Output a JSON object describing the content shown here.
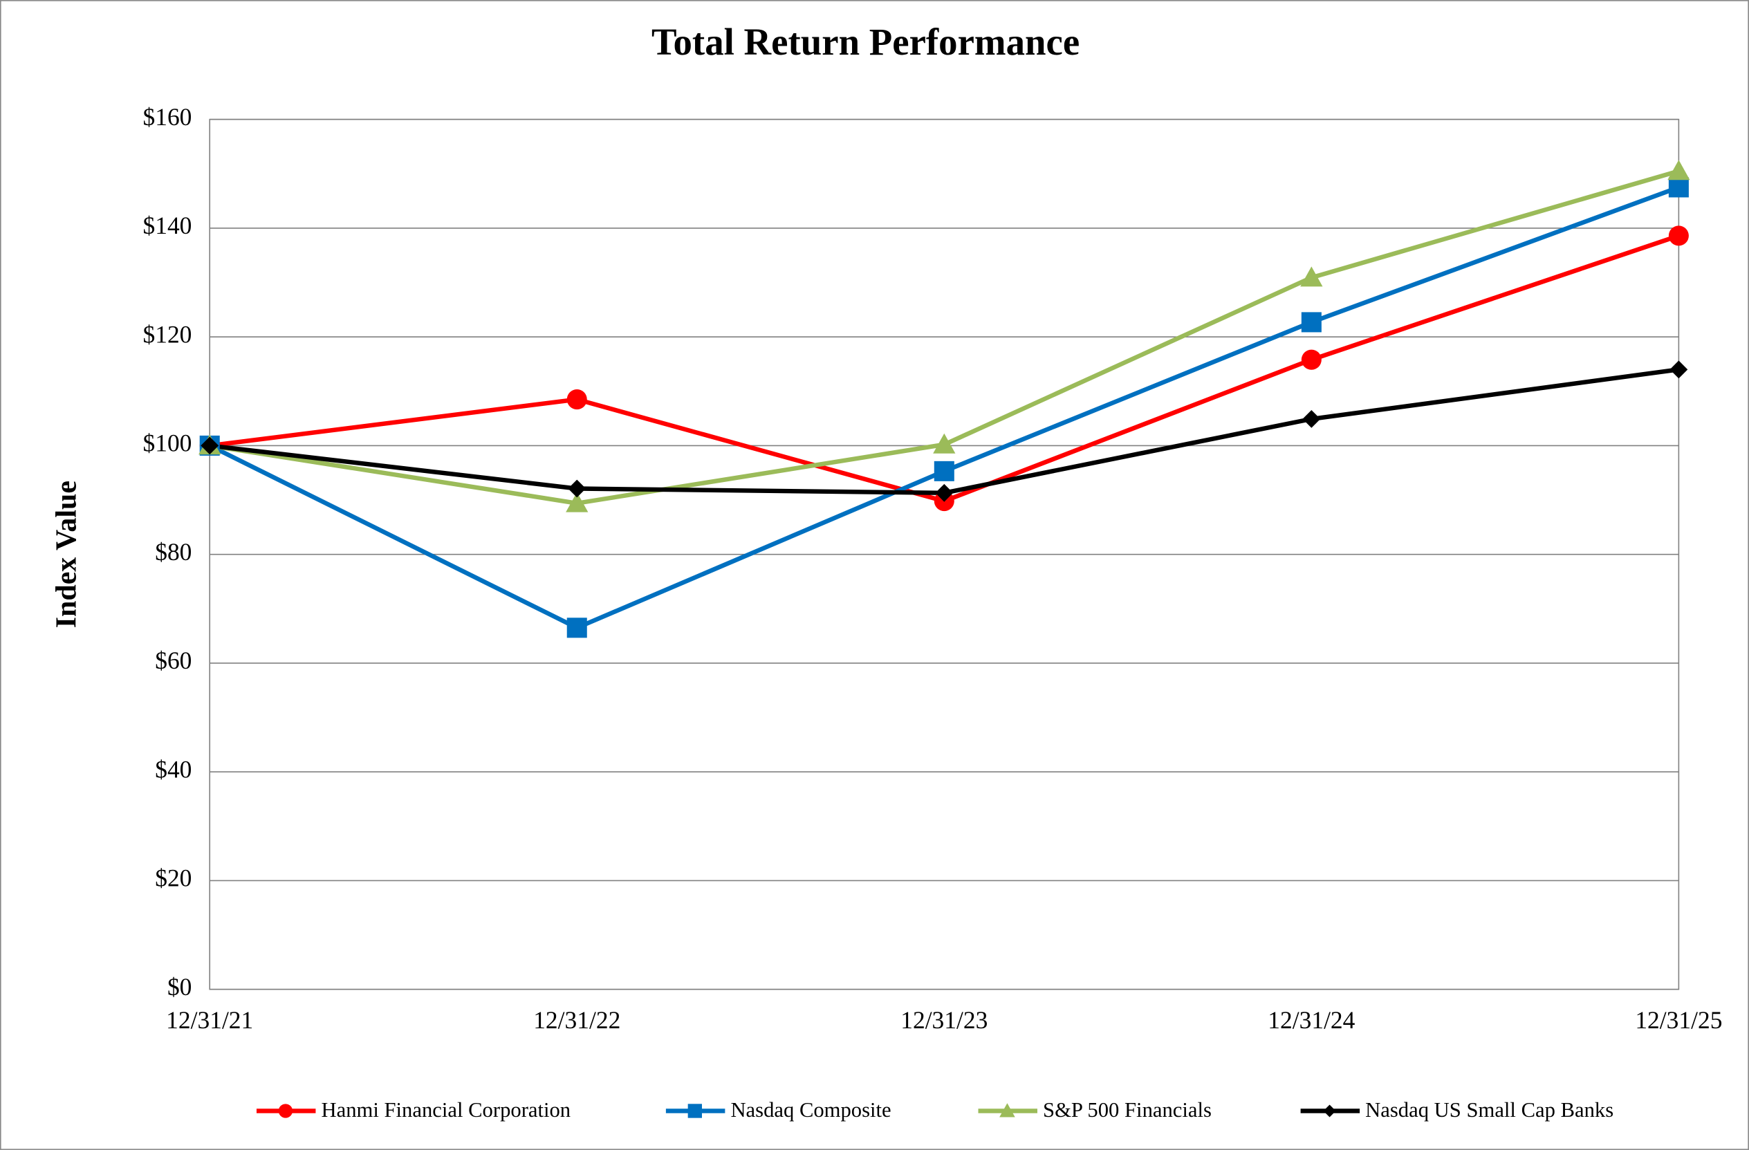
{
  "chart_data": {
    "type": "line",
    "title": "Total Return Performance",
    "y_label": "Index Value",
    "categories": [
      "12/31/21",
      "12/31/22",
      "12/31/23",
      "12/31/24",
      "12/31/25"
    ],
    "series": [
      {
        "name": "Hanmi Financial Corporation",
        "color": "#ff0000",
        "marker": "circle",
        "values": [
          100,
          108.5,
          89.8,
          115.8,
          138.6
        ]
      },
      {
        "name": "Nasdaq Composite",
        "color": "#0070c0",
        "marker": "square",
        "values": [
          100,
          66.5,
          95.3,
          122.7,
          147.5
        ]
      },
      {
        "name": "S&P 500 Financials",
        "color": "#9bbb59",
        "marker": "triangle",
        "values": [
          100,
          89.4,
          100.2,
          130.9,
          150.5
        ]
      },
      {
        "name": "Nasdaq US Small Cap Banks",
        "color": "#000000",
        "marker": "diamond",
        "values": [
          100,
          92.1,
          91.3,
          104.9,
          114.0
        ]
      }
    ],
    "ylim": [
      0,
      160
    ],
    "yticks": [
      {
        "value": 0,
        "label": "$0"
      },
      {
        "value": 20,
        "label": "$20"
      },
      {
        "value": 40,
        "label": "$40"
      },
      {
        "value": 60,
        "label": "$60"
      },
      {
        "value": 80,
        "label": "$80"
      },
      {
        "value": 100,
        "label": "$100"
      },
      {
        "value": 120,
        "label": "$120"
      },
      {
        "value": 140,
        "label": "$140"
      },
      {
        "value": 160,
        "label": "$160"
      }
    ],
    "grid": true,
    "legend": "bottom"
  }
}
